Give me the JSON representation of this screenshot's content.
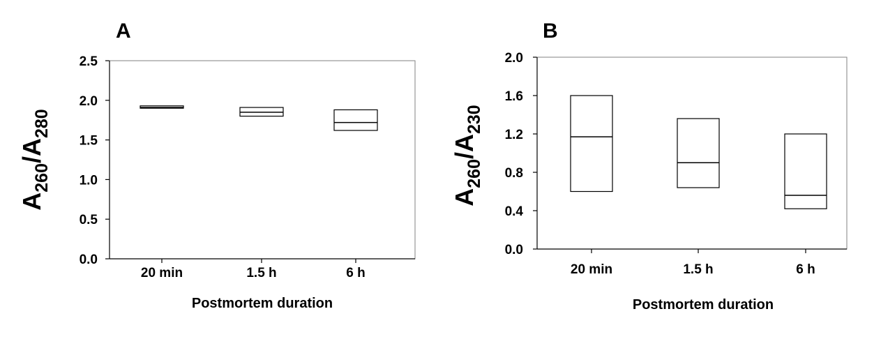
{
  "chart_data": [
    {
      "panel": "A",
      "type": "box",
      "categories": [
        "20 min",
        "1.5 h",
        "6 h"
      ],
      "boxes": [
        {
          "q1": 1.9,
          "median": 1.91,
          "q3": 1.93
        },
        {
          "q1": 1.8,
          "median": 1.85,
          "q3": 1.91
        },
        {
          "q1": 1.62,
          "median": 1.72,
          "q3": 1.88
        }
      ],
      "ylim": [
        0.0,
        2.5
      ],
      "yticks": [
        "0.0",
        "0.5",
        "1.0",
        "1.5",
        "2.0",
        "2.5"
      ],
      "ylabel": {
        "a": "A",
        "sub1": "260",
        "slash": "/A",
        "sub2": "280"
      },
      "xlabel": "Postmortem duration",
      "grid": false
    },
    {
      "panel": "B",
      "type": "box",
      "categories": [
        "20 min",
        "1.5 h",
        "6 h"
      ],
      "boxes": [
        {
          "q1": 0.6,
          "median": 1.17,
          "q3": 1.6
        },
        {
          "q1": 0.64,
          "median": 0.9,
          "q3": 1.36
        },
        {
          "q1": 0.42,
          "median": 0.56,
          "q3": 1.2
        }
      ],
      "ylim": [
        0.0,
        2.0
      ],
      "yticks": [
        "0.0",
        "0.4",
        "0.8",
        "1.2",
        "1.6",
        "2.0"
      ],
      "ylabel": {
        "a": "A",
        "sub1": "260",
        "slash": "/A",
        "sub2": "230"
      },
      "xlabel": "Postmortem duration",
      "grid": false
    }
  ]
}
